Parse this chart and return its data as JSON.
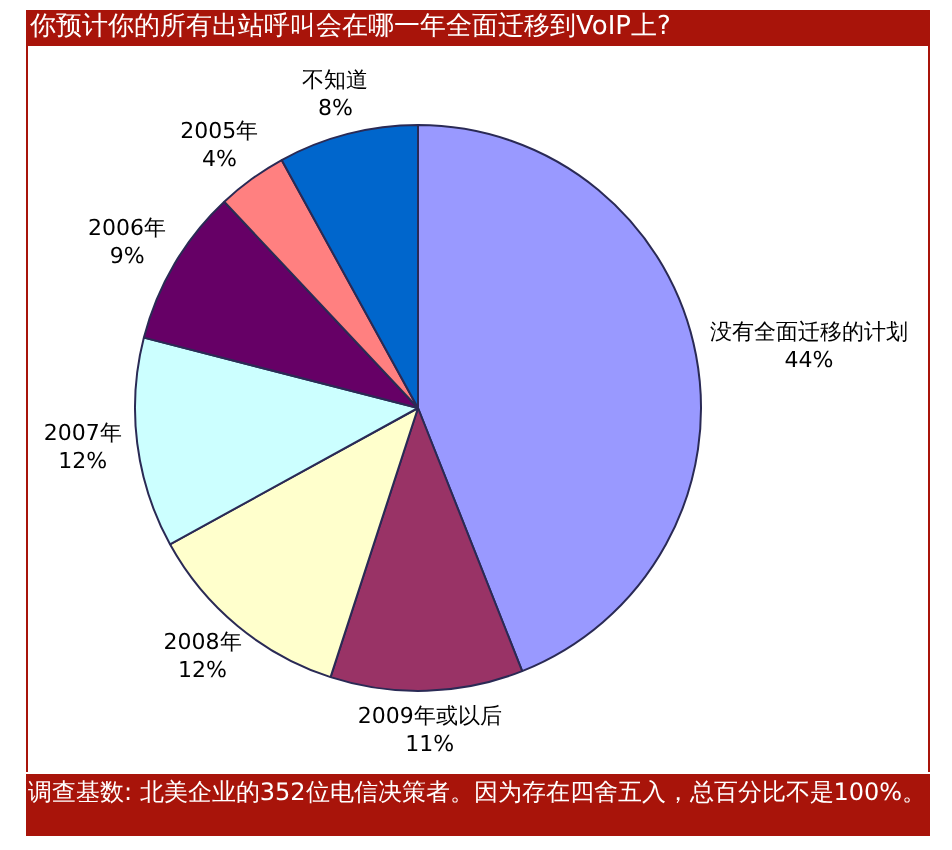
{
  "chart_data": {
    "type": "pie",
    "title": "你预计你的所有出站呼叫会在哪一年全面迁移到VoIP上?",
    "categories": [
      "没有全面迁移的计划",
      "2009年或以后",
      "2008年",
      "2007年",
      "2006年",
      "2005年",
      "不知道"
    ],
    "values": [
      44,
      11,
      12,
      12,
      9,
      4,
      8
    ],
    "value_labels": [
      "44%",
      "11%",
      "12%",
      "12%",
      "9%",
      "4%",
      "8%"
    ],
    "colors": [
      "#9999ff",
      "#993366",
      "#ffffcc",
      "#ccffff",
      "#660066",
      "#ff8080",
      "#0066cc"
    ],
    "legend": false,
    "annotations": [
      "调查基数: 北美企业的352位电信决策者。因为存在四舍五入，总百分比不是100%。"
    ]
  }
}
